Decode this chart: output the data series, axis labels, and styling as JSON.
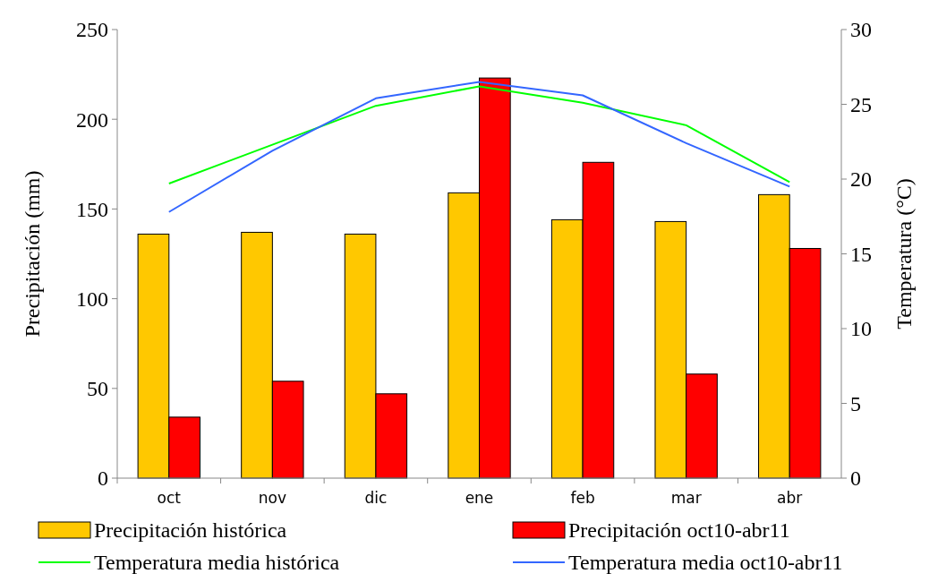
{
  "chart_data": {
    "type": "bar",
    "categories": [
      "oct",
      "nov",
      "dic",
      "ene",
      "feb",
      "mar",
      "abr"
    ],
    "ylabel": "Precipitación (mm)",
    "y2label": "Temperatura (°C)",
    "ylim": [
      0,
      250
    ],
    "yticks": [
      0,
      50,
      100,
      150,
      200,
      250
    ],
    "y2lim": [
      0,
      30
    ],
    "y2ticks": [
      0,
      5,
      10,
      15,
      20,
      25,
      30
    ],
    "legend": "bottom",
    "grid": false,
    "series": [
      {
        "name": "Precipitación histórica",
        "color": "#ffc800",
        "values": [
          136,
          137,
          136,
          159,
          144,
          143,
          158
        ]
      },
      {
        "name": "Precipitación oct10-abr11",
        "color": "#ff0000",
        "values": [
          34,
          54,
          47,
          223,
          176,
          58,
          128
        ]
      },
      {
        "name": "Temperatura media histórica",
        "type": "line",
        "axis": "y2",
        "color": "#00ff00",
        "values": [
          19.7,
          22.3,
          24.9,
          26.2,
          25.1,
          23.6,
          19.8
        ]
      },
      {
        "name": "Temperatura media oct10-abr11",
        "type": "line",
        "axis": "y2",
        "color": "#3366ff",
        "values": [
          17.8,
          21.9,
          25.4,
          26.5,
          25.6,
          22.4,
          19.5
        ]
      }
    ]
  }
}
